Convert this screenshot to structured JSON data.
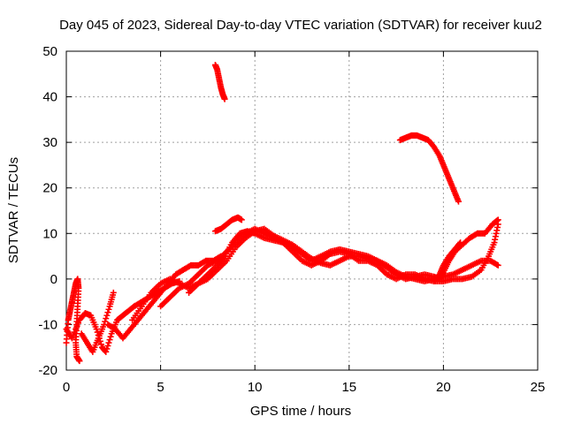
{
  "chart_data": {
    "type": "scatter",
    "title": "Day 045 of 2023, Sidereal Day-to-day VTEC variation (SDTVAR) for receiver kuu2",
    "xlabel": "GPS time / hours",
    "ylabel": "SDTVAR / TECUs",
    "xlim": [
      0,
      25
    ],
    "ylim": [
      -20,
      50
    ],
    "xticks": [
      0,
      5,
      10,
      15,
      20,
      25
    ],
    "yticks": [
      -20,
      -10,
      0,
      10,
      20,
      30,
      40,
      50
    ],
    "grid": true,
    "marker": "plus",
    "color": "#ff0000",
    "series": [
      {
        "name": "arc1",
        "points": [
          [
            0.0,
            -14
          ],
          [
            0.1,
            -9
          ],
          [
            0.2,
            -7
          ],
          [
            0.3,
            -5
          ],
          [
            0.4,
            -3
          ],
          [
            0.5,
            -1
          ],
          [
            0.6,
            0
          ],
          [
            0.65,
            -2
          ],
          [
            0.6,
            -6
          ],
          [
            0.55,
            -10
          ],
          [
            0.5,
            -14
          ],
          [
            0.55,
            -17
          ],
          [
            0.7,
            -18
          ]
        ]
      },
      {
        "name": "arc2",
        "points": [
          [
            0.0,
            -11
          ],
          [
            0.3,
            -13
          ],
          [
            0.7,
            -9
          ],
          [
            1.0,
            -7.5
          ],
          [
            1.3,
            -8
          ],
          [
            1.6,
            -11
          ],
          [
            1.9,
            -15
          ],
          [
            2.1,
            -16
          ],
          [
            2.4,
            -12
          ],
          [
            2.7,
            -9
          ],
          [
            3.0,
            -8
          ],
          [
            3.3,
            -7
          ],
          [
            3.6,
            -6
          ],
          [
            4.0,
            -5
          ],
          [
            4.4,
            -4
          ],
          [
            4.8,
            -3
          ],
          [
            5.2,
            -2
          ],
          [
            5.6,
            -1
          ],
          [
            6.0,
            -0.5
          ]
        ]
      },
      {
        "name": "arc3",
        "points": [
          [
            0.8,
            -12
          ],
          [
            1.1,
            -14
          ],
          [
            1.4,
            -16
          ],
          [
            1.7,
            -13
          ],
          [
            2.0,
            -10
          ],
          [
            2.3,
            -6
          ],
          [
            2.5,
            -3
          ]
        ]
      },
      {
        "name": "arc4",
        "points": [
          [
            2.2,
            -10
          ],
          [
            2.6,
            -11
          ],
          [
            3.0,
            -13
          ],
          [
            3.4,
            -11
          ],
          [
            3.8,
            -9
          ],
          [
            4.2,
            -7
          ],
          [
            4.6,
            -5
          ],
          [
            5.0,
            -3
          ],
          [
            5.4,
            -1
          ],
          [
            5.8,
            1
          ],
          [
            6.2,
            2
          ],
          [
            6.6,
            3
          ],
          [
            7.0,
            3
          ],
          [
            7.4,
            4
          ],
          [
            7.8,
            4
          ],
          [
            8.2,
            5
          ]
        ]
      },
      {
        "name": "arc5",
        "points": [
          [
            3.5,
            -9
          ],
          [
            4.0,
            -6
          ],
          [
            4.5,
            -3
          ],
          [
            5.0,
            -1
          ],
          [
            5.5,
            0
          ],
          [
            6.0,
            -1
          ],
          [
            6.5,
            -2
          ],
          [
            7.0,
            -1
          ],
          [
            7.5,
            0
          ],
          [
            8.0,
            2
          ],
          [
            8.5,
            4
          ],
          [
            9.0,
            7
          ],
          [
            9.5,
            9
          ],
          [
            10.0,
            10.5
          ],
          [
            10.5,
            11
          ],
          [
            11.0,
            9.5
          ],
          [
            11.5,
            8.5
          ],
          [
            12.0,
            7.5
          ],
          [
            12.5,
            6
          ],
          [
            13.0,
            4.5
          ],
          [
            13.5,
            3.5
          ],
          [
            14.0,
            3
          ],
          [
            14.5,
            4
          ],
          [
            15.0,
            5
          ],
          [
            15.5,
            5
          ],
          [
            16.0,
            4.5
          ],
          [
            16.5,
            4
          ],
          [
            17.0,
            3
          ],
          [
            17.5,
            1.5
          ],
          [
            18.0,
            0.5
          ],
          [
            18.5,
            0
          ],
          [
            19.0,
            -0.5
          ],
          [
            19.5,
            0
          ],
          [
            20.0,
            0.5
          ],
          [
            20.5,
            1
          ],
          [
            21.0,
            2
          ],
          [
            21.5,
            3
          ],
          [
            22.0,
            4
          ],
          [
            22.5,
            4
          ],
          [
            22.9,
            3
          ]
        ]
      },
      {
        "name": "arc6",
        "points": [
          [
            5.0,
            -6
          ],
          [
            5.5,
            -4
          ],
          [
            6.0,
            -2
          ],
          [
            6.5,
            -1
          ],
          [
            7.0,
            1
          ],
          [
            7.5,
            3
          ],
          [
            8.0,
            4
          ],
          [
            8.5,
            6
          ],
          [
            9.0,
            8
          ],
          [
            9.5,
            10
          ],
          [
            10.0,
            11
          ],
          [
            10.5,
            10
          ],
          [
            11.0,
            9
          ],
          [
            11.5,
            8
          ],
          [
            12.0,
            7
          ],
          [
            12.5,
            5.5
          ],
          [
            13.0,
            4
          ],
          [
            13.5,
            5
          ],
          [
            14.0,
            6
          ],
          [
            14.5,
            6.5
          ],
          [
            15.0,
            6
          ],
          [
            15.5,
            5.5
          ],
          [
            16.0,
            5
          ],
          [
            16.5,
            4
          ],
          [
            17.0,
            2.5
          ],
          [
            17.5,
            1
          ],
          [
            18.0,
            0
          ],
          [
            18.5,
            0.5
          ],
          [
            19.0,
            1
          ],
          [
            19.5,
            0.5
          ],
          [
            19.8,
            0
          ],
          [
            20.0,
            1.5
          ],
          [
            20.3,
            4
          ],
          [
            20.6,
            6
          ],
          [
            21.0,
            7.5
          ],
          [
            21.4,
            9
          ],
          [
            21.8,
            10
          ],
          [
            22.2,
            10
          ],
          [
            22.6,
            12
          ],
          [
            22.9,
            13
          ]
        ]
      },
      {
        "name": "arc7",
        "points": [
          [
            6.5,
            -3
          ],
          [
            7.0,
            -1
          ],
          [
            7.5,
            1
          ],
          [
            8.0,
            3
          ],
          [
            8.4,
            5
          ],
          [
            8.8,
            8
          ],
          [
            9.2,
            10
          ],
          [
            9.6,
            10.5
          ],
          [
            10.0,
            10
          ],
          [
            10.5,
            9
          ],
          [
            11.0,
            8.5
          ],
          [
            11.5,
            8
          ],
          [
            12.0,
            6
          ],
          [
            12.5,
            4
          ],
          [
            13.0,
            3
          ],
          [
            13.5,
            4
          ],
          [
            14.0,
            5.5
          ],
          [
            14.5,
            6
          ],
          [
            15.0,
            5.5
          ],
          [
            15.5,
            4
          ],
          [
            16.0,
            4
          ],
          [
            16.5,
            3
          ],
          [
            17.0,
            1
          ],
          [
            17.5,
            0
          ],
          [
            18.0,
            1
          ],
          [
            18.5,
            1
          ],
          [
            19.0,
            0
          ],
          [
            19.5,
            -0.5
          ],
          [
            20.0,
            -0.5
          ],
          [
            20.5,
            0
          ],
          [
            21.0,
            0
          ],
          [
            21.5,
            0.5
          ],
          [
            22.0,
            2
          ],
          [
            22.4,
            5
          ],
          [
            22.7,
            8
          ],
          [
            22.9,
            12
          ]
        ]
      },
      {
        "name": "arc8",
        "points": [
          [
            7.9,
            10.5
          ],
          [
            8.2,
            11
          ],
          [
            8.5,
            12
          ],
          [
            8.8,
            13
          ],
          [
            9.1,
            13.5
          ],
          [
            9.3,
            13
          ]
        ]
      },
      {
        "name": "arc9",
        "points": [
          [
            7.9,
            47
          ],
          [
            8.0,
            46
          ],
          [
            8.1,
            44
          ],
          [
            8.2,
            42
          ],
          [
            8.3,
            40.5
          ],
          [
            8.4,
            39.5
          ]
        ]
      },
      {
        "name": "arc10",
        "points": [
          [
            17.7,
            30.5
          ],
          [
            18.0,
            31
          ],
          [
            18.3,
            31.5
          ],
          [
            18.6,
            31.5
          ],
          [
            18.9,
            31
          ],
          [
            19.2,
            30.5
          ],
          [
            19.5,
            29
          ],
          [
            19.8,
            27
          ],
          [
            20.0,
            25
          ],
          [
            20.2,
            23
          ],
          [
            20.4,
            21
          ],
          [
            20.6,
            19
          ],
          [
            20.8,
            17
          ]
        ]
      },
      {
        "name": "arc11",
        "points": [
          [
            19.5,
            -0.5
          ],
          [
            19.8,
            1
          ],
          [
            20.0,
            3
          ],
          [
            20.3,
            5
          ],
          [
            20.6,
            6.5
          ],
          [
            20.9,
            8
          ]
        ]
      }
    ]
  }
}
